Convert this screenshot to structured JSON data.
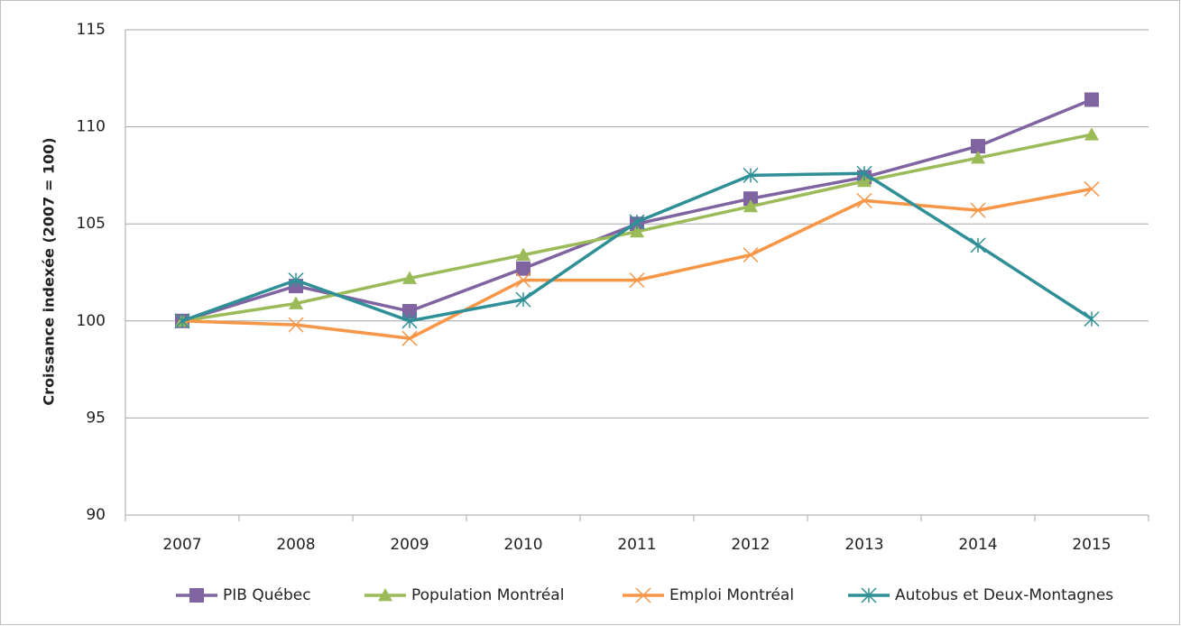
{
  "chart_data": {
    "type": "line",
    "y_label": "Croissance indexée (2007 = 100)",
    "categories": [
      "2007",
      "2008",
      "2009",
      "2010",
      "2011",
      "2012",
      "2013",
      "2014",
      "2015"
    ],
    "series": [
      {
        "name": "PIB Québec",
        "color": "#8064a2",
        "marker": "square",
        "values": [
          100,
          101.8,
          100.5,
          102.7,
          105.0,
          106.3,
          107.4,
          109.0,
          111.4
        ]
      },
      {
        "name": "Population Montréal",
        "color": "#9bbb59",
        "marker": "triangle",
        "values": [
          100,
          100.9,
          102.2,
          103.4,
          104.6,
          105.9,
          107.2,
          108.4,
          109.6
        ]
      },
      {
        "name": "Emploi Montréal",
        "color": "#f79646",
        "marker": "x",
        "values": [
          100,
          99.8,
          99.1,
          102.1,
          102.1,
          103.4,
          106.2,
          105.7,
          106.8
        ]
      },
      {
        "name": "Autobus et Deux-Montagnes",
        "color": "#2f8f97",
        "marker": "star",
        "values": [
          100,
          102.1,
          100.0,
          101.1,
          105.1,
          107.5,
          107.6,
          103.9,
          100.1
        ]
      }
    ],
    "ylim": [
      90,
      115
    ],
    "yticks": [
      90,
      95,
      100,
      105,
      110,
      115
    ],
    "grid": true,
    "legend": "bottom"
  }
}
